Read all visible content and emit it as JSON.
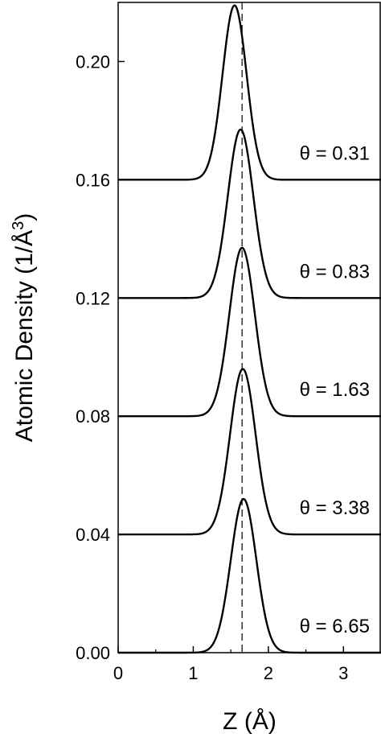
{
  "chart_data": {
    "type": "line",
    "title": "",
    "xlabel": "Z (Å)",
    "ylabel": "Atomic Density (1/Å",
    "ylabel_superscript": "3",
    "ylabel_close": ")",
    "xlim": [
      0,
      3.5
    ],
    "ylim": [
      0,
      0.22
    ],
    "x_ticks": [
      0,
      1,
      2,
      3
    ],
    "x_tick_labels": [
      "0",
      "1",
      "2",
      "3"
    ],
    "y_ticks": [
      0,
      0.04,
      0.08,
      0.12,
      0.16,
      0.2
    ],
    "y_tick_labels": [
      "0.00",
      "0.04",
      "0.08",
      "0.12",
      "0.16",
      "0.20"
    ],
    "grid": false,
    "legend": "none",
    "reference_line": {
      "x": 1.65,
      "style": "dashed"
    },
    "series": [
      {
        "annotation": "θ = 0.31",
        "baseline": 0.16,
        "peak_x": 1.55,
        "peak_height": 0.059,
        "width_sigma": 0.16
      },
      {
        "annotation": "θ = 0.83",
        "baseline": 0.12,
        "peak_x": 1.63,
        "peak_height": 0.057,
        "width_sigma": 0.17
      },
      {
        "annotation": "θ = 1.63",
        "baseline": 0.08,
        "peak_x": 1.65,
        "peak_height": 0.057,
        "width_sigma": 0.17
      },
      {
        "annotation": "θ = 3.38",
        "baseline": 0.04,
        "peak_x": 1.66,
        "peak_height": 0.056,
        "width_sigma": 0.17
      },
      {
        "annotation": "θ = 6.65",
        "baseline": 0.0,
        "peak_x": 1.67,
        "peak_height": 0.052,
        "width_sigma": 0.17
      }
    ]
  }
}
